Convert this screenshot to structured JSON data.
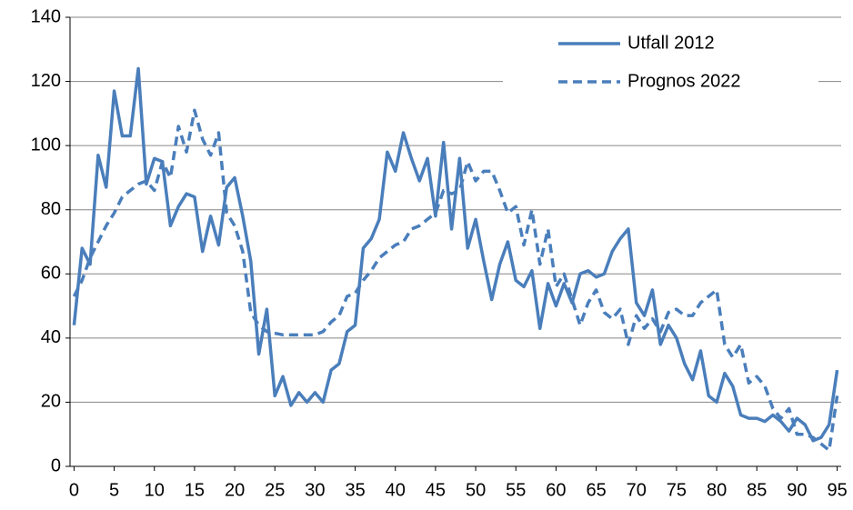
{
  "chart_data": {
    "type": "line",
    "x": [
      0,
      1,
      2,
      3,
      4,
      5,
      6,
      7,
      8,
      9,
      10,
      11,
      12,
      13,
      14,
      15,
      16,
      17,
      18,
      19,
      20,
      21,
      22,
      23,
      24,
      25,
      26,
      27,
      28,
      29,
      30,
      31,
      32,
      33,
      34,
      35,
      36,
      37,
      38,
      39,
      40,
      41,
      42,
      43,
      44,
      45,
      46,
      47,
      48,
      49,
      50,
      51,
      52,
      53,
      54,
      55,
      56,
      57,
      58,
      59,
      60,
      61,
      62,
      63,
      64,
      65,
      66,
      67,
      68,
      69,
      70,
      71,
      72,
      73,
      74,
      75,
      76,
      77,
      78,
      79,
      80,
      81,
      82,
      83,
      84,
      85,
      86,
      87,
      88,
      89,
      90,
      91,
      92,
      93,
      94,
      95
    ],
    "series": [
      {
        "name": "Utfall 2012",
        "color": "#4a7ebb",
        "dash": false,
        "values": [
          44,
          68,
          63,
          97,
          87,
          117,
          103,
          103,
          124,
          88,
          96,
          95,
          75,
          81,
          85,
          84,
          67,
          78,
          69,
          87,
          90,
          78,
          64,
          35,
          49,
          22,
          28,
          19,
          23,
          20,
          23,
          20,
          30,
          32,
          42,
          44,
          68,
          71,
          77,
          98,
          92,
          104,
          96,
          89,
          96,
          78,
          101,
          74,
          96,
          68,
          77,
          64,
          52,
          63,
          70,
          58,
          56,
          61,
          43,
          57,
          50,
          57,
          51,
          60,
          61,
          59,
          60,
          67,
          71,
          74,
          51,
          47,
          55,
          38,
          44,
          40,
          32,
          27,
          36,
          22,
          20,
          29,
          25,
          16,
          15,
          15,
          14,
          16,
          14,
          11,
          15,
          13,
          8,
          9,
          13,
          30
        ]
      },
      {
        "name": "Prognos 2022",
        "color": "#4a7ebb",
        "dash": true,
        "values": [
          53,
          58,
          65,
          70,
          75,
          79,
          84,
          86,
          88,
          89,
          86,
          95,
          90,
          106,
          98,
          111,
          102,
          97,
          104,
          79,
          75,
          67,
          48,
          44,
          42,
          41.5,
          41,
          41,
          41,
          41,
          41,
          42,
          45,
          47,
          53,
          54,
          58,
          61,
          65,
          67,
          69,
          70,
          74,
          75,
          77,
          79,
          86,
          85,
          86,
          95,
          89,
          92,
          92,
          86,
          79,
          81,
          69,
          80,
          63,
          74,
          56,
          60,
          52,
          44,
          51,
          55,
          48,
          46,
          49,
          38,
          47,
          43,
          46,
          42,
          48,
          49,
          47,
          47,
          51,
          53,
          55,
          38,
          34,
          38,
          26,
          28,
          25,
          18,
          15,
          18,
          10,
          10,
          9,
          7,
          5,
          22
        ]
      }
    ],
    "xlim": [
      -0.5,
      95.5
    ],
    "xticks": [
      0,
      5,
      10,
      15,
      20,
      25,
      30,
      35,
      40,
      45,
      50,
      55,
      60,
      65,
      70,
      75,
      80,
      85,
      90,
      95
    ],
    "ylim": [
      0,
      140
    ],
    "yticks": [
      0,
      20,
      40,
      60,
      80,
      100,
      120,
      140
    ],
    "grid": true,
    "legend": "upper right"
  }
}
